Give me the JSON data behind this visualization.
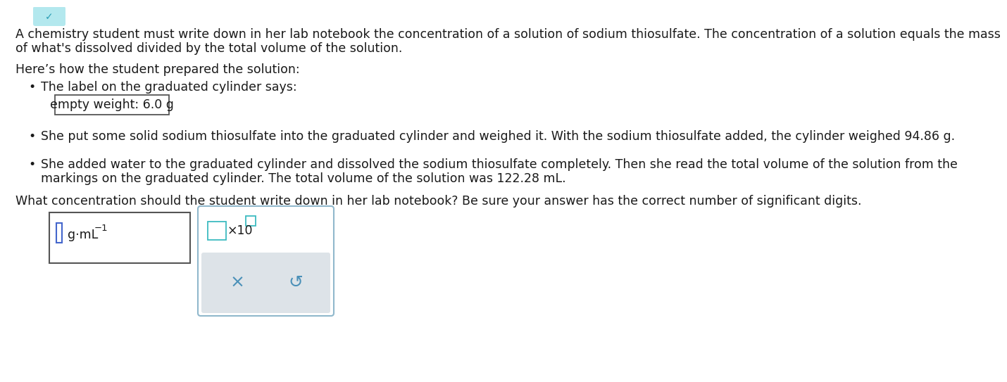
{
  "background_color": "#ffffff",
  "text_color": "#1a1a1a",
  "line1": "A chemistry student must write down in her lab notebook the concentration of a solution of sodium thiosulfate. The concentration of a solution equals the mass",
  "line2": "of what's dissolved divided by the total volume of the solution.",
  "section_header": "Here’s how the student prepared the solution:",
  "bullet1": "The label on the graduated cylinder says:",
  "box_text": "empty weight: 6.0 g",
  "bullet2": "She put some solid sodium thiosulfate into the graduated cylinder and weighed it. With the sodium thiosulfate added, the cylinder weighed 94.86 g.",
  "bullet3_line1": "She added water to the graduated cylinder and dissolved the sodium thiosulfate completely. Then she read the total volume of the solution from the",
  "bullet3_line2": "markings on the graduated cylinder. The total volume of the solution was 122.28 mL.",
  "question": "What concentration should the student write down in her lab notebook? Be sure your answer has the correct number of significant digits.",
  "box_border_color": "#555555",
  "teal_bg_color": "#b3e8ee",
  "teal_icon_color": "#3dbbc0",
  "teal_check_color": "#2a9db5",
  "widget_border_color": "#90b8cc",
  "button_area_color": "#dde3e8",
  "button_symbol_color": "#4a90b8",
  "cursor_color": "#4466cc",
  "input_border_color": "#555555",
  "fs_main": 12.5,
  "fs_small": 9.5
}
